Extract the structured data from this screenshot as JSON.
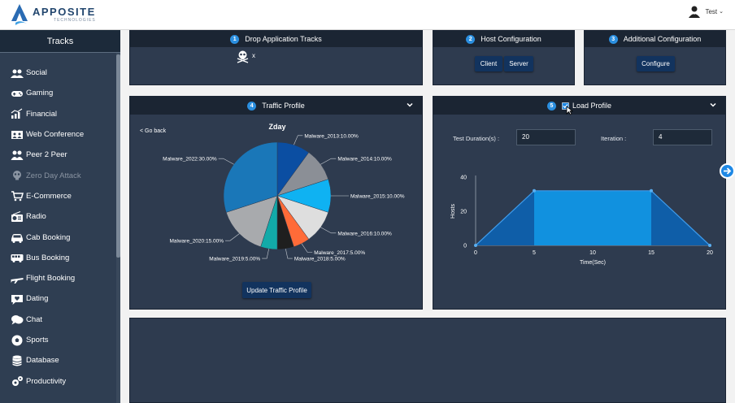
{
  "header": {
    "logo_name": "APPOSITE",
    "logo_sub": "TECHNOLOGIES",
    "user_name": "Test"
  },
  "sidebar": {
    "title": "Tracks",
    "items": [
      {
        "label": "Social",
        "icon": "social-icon",
        "enabled": true
      },
      {
        "label": "Gaming",
        "icon": "gamepad-icon",
        "enabled": true
      },
      {
        "label": "Financial",
        "icon": "chart-icon",
        "enabled": true
      },
      {
        "label": "Web Conference",
        "icon": "conference-icon",
        "enabled": true
      },
      {
        "label": "Peer 2 Peer",
        "icon": "peers-icon",
        "enabled": true
      },
      {
        "label": "Zero Day Attack",
        "icon": "skull-icon",
        "enabled": false
      },
      {
        "label": "E-Commerce",
        "icon": "cart-icon",
        "enabled": true
      },
      {
        "label": "Radio",
        "icon": "radio-icon",
        "enabled": true
      },
      {
        "label": "Cab Booking",
        "icon": "car-icon",
        "enabled": true
      },
      {
        "label": "Bus Booking",
        "icon": "bus-icon",
        "enabled": true
      },
      {
        "label": "Flight Booking",
        "icon": "plane-icon",
        "enabled": true
      },
      {
        "label": "Dating",
        "icon": "heart-chat-icon",
        "enabled": true
      },
      {
        "label": "Chat",
        "icon": "chat-icon",
        "enabled": true
      },
      {
        "label": "Sports",
        "icon": "ball-icon",
        "enabled": true
      },
      {
        "label": "Database",
        "icon": "database-icon",
        "enabled": true
      },
      {
        "label": "Productivity",
        "icon": "gears-icon",
        "enabled": true
      }
    ]
  },
  "drop_panel": {
    "step": "1",
    "title": "Drop Application Tracks",
    "track_remove": "x"
  },
  "host_panel": {
    "step": "2",
    "title": "Host Configuration",
    "client_label": "Client",
    "server_label": "Server"
  },
  "additional_panel": {
    "step": "3",
    "title": "Additional Configuration",
    "configure_label": "Configure"
  },
  "traffic_panel": {
    "step": "4",
    "title": "Traffic Profile",
    "go_back": "< Go back",
    "update_label": "Update Traffic Profile"
  },
  "load_panel": {
    "step": "5",
    "title": "Load Profile",
    "checked": true,
    "duration_label": "Test Duration(s) :",
    "duration_value": "20",
    "iteration_label": "Iteration :",
    "iteration_value": "4"
  },
  "chart_data": [
    {
      "type": "pie",
      "title": "Zday",
      "slices": [
        {
          "label": "Malware_2013:10.00%",
          "value": 10,
          "color": "#0b4ea2"
        },
        {
          "label": "Malware_2014:10.00%",
          "value": 10,
          "color": "#8b8f96"
        },
        {
          "label": "Malware_2015:10.00%",
          "value": 10,
          "color": "#0fb2f2"
        },
        {
          "label": "Malware_2016:10.00%",
          "value": 10,
          "color": "#dedede"
        },
        {
          "label": "Malware_2017:5.00%",
          "value": 5,
          "color": "#ff6b38"
        },
        {
          "label": "Malware_2018:5.00%",
          "value": 5,
          "color": "#1f1f1f"
        },
        {
          "label": "Malware_2019:5.00%",
          "value": 5,
          "color": "#12aaa8"
        },
        {
          "label": "Malware_2020:15.00%",
          "value": 15,
          "color": "#a8aaad"
        },
        {
          "label": "Malware_2022:30.00%",
          "value": 30,
          "color": "#1a77b8"
        }
      ]
    },
    {
      "type": "area",
      "x": [
        0,
        5,
        15,
        20
      ],
      "y": [
        0,
        32,
        32,
        0
      ],
      "xlabel": "Time(Sec)",
      "ylabel": "Hosts",
      "xticks": [
        0,
        5,
        10,
        15,
        20
      ],
      "yticks": [
        0,
        20,
        40
      ],
      "xlim": [
        0,
        20
      ],
      "ylim": [
        0,
        40
      ],
      "colors": {
        "ramp": "#0f5ea8",
        "plateau": "#1191df",
        "line": "#3f9bea"
      }
    }
  ]
}
